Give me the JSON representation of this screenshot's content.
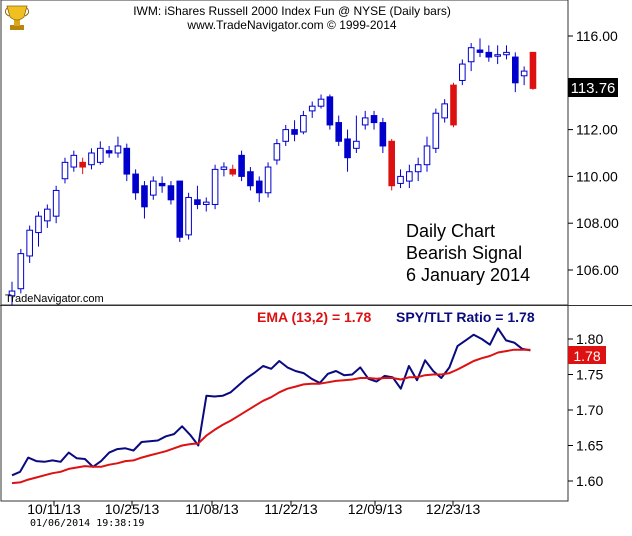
{
  "header": {
    "title": "IWM:  iShares Russell 2000 Index Fun @ NYSE  (Daily bars)",
    "subtitle": "www.TradeNavigator.com © 1999-2014"
  },
  "watermark": "TradeNavigator.com",
  "annotation": [
    "Daily Chart",
    "Bearish Signal",
    "6 January 2014"
  ],
  "footer": {
    "timestamp": "01/06/2014  19:38:19"
  },
  "colors": {
    "up_candle": "#0000cc",
    "down_candle": "#dd1111",
    "ratio_line": "#0a0a80",
    "ema_line": "#dd1111",
    "price_badge": "#000000",
    "ema_badge": "#dd1111"
  },
  "icons": {
    "logo": "trophy-logo-icon"
  },
  "chart_data": [
    {
      "type": "candlestick",
      "ylim": [
        104.5,
        116.5
      ],
      "yticks": [
        "116.00",
        "114.00",
        "112.00",
        "110.00",
        "108.00",
        "106.00"
      ],
      "last_price_label": "113.76",
      "xticks": [
        "10/11/13",
        "10/25/13",
        "11/08/13",
        "11/22/13",
        "12/09/13",
        "12/23/13"
      ],
      "candles": [
        {
          "o": 104.9,
          "h": 105.5,
          "l": 104.5,
          "c": 105.1,
          "dir": "up"
        },
        {
          "o": 105.2,
          "h": 106.9,
          "l": 105.0,
          "c": 106.7,
          "dir": "up"
        },
        {
          "o": 106.6,
          "h": 107.9,
          "l": 106.3,
          "c": 107.7,
          "dir": "up"
        },
        {
          "o": 107.6,
          "h": 108.5,
          "l": 107.0,
          "c": 108.3,
          "dir": "up"
        },
        {
          "o": 108.1,
          "h": 108.8,
          "l": 107.8,
          "c": 108.6,
          "dir": "up"
        },
        {
          "o": 108.3,
          "h": 109.6,
          "l": 108.0,
          "c": 109.4,
          "dir": "up"
        },
        {
          "o": 109.9,
          "h": 110.8,
          "l": 109.7,
          "c": 110.6,
          "dir": "up"
        },
        {
          "o": 110.4,
          "h": 111.1,
          "l": 110.2,
          "c": 110.9,
          "dir": "up"
        },
        {
          "o": 110.6,
          "h": 110.8,
          "l": 110.1,
          "c": 110.4,
          "dir": "down"
        },
        {
          "o": 110.5,
          "h": 111.2,
          "l": 110.3,
          "c": 111.0,
          "dir": "up"
        },
        {
          "o": 110.6,
          "h": 111.5,
          "l": 110.5,
          "c": 111.2,
          "dir": "up"
        },
        {
          "o": 111.1,
          "h": 111.3,
          "l": 110.8,
          "c": 111.0,
          "dir": "up"
        },
        {
          "o": 111.0,
          "h": 111.7,
          "l": 110.8,
          "c": 111.3,
          "dir": "up"
        },
        {
          "o": 111.2,
          "h": 111.4,
          "l": 109.8,
          "c": 110.1,
          "dir": "up"
        },
        {
          "o": 110.1,
          "h": 110.3,
          "l": 109.0,
          "c": 109.3,
          "dir": "up"
        },
        {
          "o": 109.6,
          "h": 109.8,
          "l": 108.2,
          "c": 108.7,
          "dir": "up"
        },
        {
          "o": 109.2,
          "h": 110.0,
          "l": 109.0,
          "c": 109.8,
          "dir": "up"
        },
        {
          "o": 109.7,
          "h": 110.0,
          "l": 109.3,
          "c": 109.6,
          "dir": "up"
        },
        {
          "o": 109.6,
          "h": 109.8,
          "l": 108.8,
          "c": 109.0,
          "dir": "up"
        },
        {
          "o": 109.8,
          "h": 109.8,
          "l": 107.2,
          "c": 107.4,
          "dir": "up"
        },
        {
          "o": 107.5,
          "h": 109.3,
          "l": 107.3,
          "c": 109.1,
          "dir": "up"
        },
        {
          "o": 109.0,
          "h": 109.6,
          "l": 108.6,
          "c": 108.8,
          "dir": "up"
        },
        {
          "o": 108.8,
          "h": 109.1,
          "l": 108.5,
          "c": 108.9,
          "dir": "up"
        },
        {
          "o": 108.8,
          "h": 110.5,
          "l": 108.6,
          "c": 110.3,
          "dir": "up"
        },
        {
          "o": 110.3,
          "h": 110.6,
          "l": 110.0,
          "c": 110.4,
          "dir": "up"
        },
        {
          "o": 110.3,
          "h": 110.5,
          "l": 110.0,
          "c": 110.1,
          "dir": "down"
        },
        {
          "o": 110.9,
          "h": 111.1,
          "l": 109.8,
          "c": 110.0,
          "dir": "up"
        },
        {
          "o": 110.2,
          "h": 110.4,
          "l": 109.4,
          "c": 109.6,
          "dir": "up"
        },
        {
          "o": 109.8,
          "h": 110.0,
          "l": 108.9,
          "c": 109.3,
          "dir": "up"
        },
        {
          "o": 109.3,
          "h": 110.6,
          "l": 109.1,
          "c": 110.4,
          "dir": "up"
        },
        {
          "o": 110.7,
          "h": 111.6,
          "l": 110.5,
          "c": 111.4,
          "dir": "up"
        },
        {
          "o": 111.5,
          "h": 112.2,
          "l": 111.3,
          "c": 112.0,
          "dir": "up"
        },
        {
          "o": 112.0,
          "h": 112.4,
          "l": 111.5,
          "c": 111.8,
          "dir": "up"
        },
        {
          "o": 111.9,
          "h": 112.8,
          "l": 111.8,
          "c": 112.6,
          "dir": "up"
        },
        {
          "o": 112.8,
          "h": 113.2,
          "l": 112.5,
          "c": 113.0,
          "dir": "up"
        },
        {
          "o": 113.0,
          "h": 113.5,
          "l": 112.9,
          "c": 113.3,
          "dir": "up"
        },
        {
          "o": 113.4,
          "h": 113.5,
          "l": 112.0,
          "c": 112.2,
          "dir": "up"
        },
        {
          "o": 112.3,
          "h": 112.6,
          "l": 111.3,
          "c": 111.5,
          "dir": "up"
        },
        {
          "o": 111.6,
          "h": 112.0,
          "l": 110.2,
          "c": 110.8,
          "dir": "up"
        },
        {
          "o": 111.2,
          "h": 112.6,
          "l": 111.0,
          "c": 111.5,
          "dir": "up"
        },
        {
          "o": 112.2,
          "h": 112.8,
          "l": 112.0,
          "c": 112.5,
          "dir": "up"
        },
        {
          "o": 112.6,
          "h": 112.8,
          "l": 112.0,
          "c": 112.3,
          "dir": "up"
        },
        {
          "o": 112.3,
          "h": 112.5,
          "l": 111.0,
          "c": 111.3,
          "dir": "up"
        },
        {
          "o": 111.5,
          "h": 111.6,
          "l": 109.4,
          "c": 109.6,
          "dir": "down"
        },
        {
          "o": 109.7,
          "h": 110.3,
          "l": 109.5,
          "c": 110.0,
          "dir": "up"
        },
        {
          "o": 109.8,
          "h": 110.5,
          "l": 109.5,
          "c": 110.2,
          "dir": "up"
        },
        {
          "o": 110.2,
          "h": 110.8,
          "l": 109.8,
          "c": 110.5,
          "dir": "up"
        },
        {
          "o": 110.5,
          "h": 111.7,
          "l": 110.2,
          "c": 111.3,
          "dir": "up"
        },
        {
          "o": 111.2,
          "h": 112.9,
          "l": 111.0,
          "c": 112.7,
          "dir": "up"
        },
        {
          "o": 112.5,
          "h": 113.3,
          "l": 112.3,
          "c": 113.1,
          "dir": "up"
        },
        {
          "o": 112.2,
          "h": 114.0,
          "l": 112.1,
          "c": 113.9,
          "dir": "down"
        },
        {
          "o": 114.1,
          "h": 115.0,
          "l": 113.9,
          "c": 114.8,
          "dir": "up"
        },
        {
          "o": 114.9,
          "h": 115.7,
          "l": 114.5,
          "c": 115.5,
          "dir": "up"
        },
        {
          "o": 115.4,
          "h": 115.9,
          "l": 115.1,
          "c": 115.3,
          "dir": "up"
        },
        {
          "o": 115.3,
          "h": 115.6,
          "l": 114.9,
          "c": 115.1,
          "dir": "up"
        },
        {
          "o": 115.2,
          "h": 115.6,
          "l": 114.8,
          "c": 115.2,
          "dir": "up"
        },
        {
          "o": 115.2,
          "h": 115.6,
          "l": 115.0,
          "c": 115.3,
          "dir": "up"
        },
        {
          "o": 115.1,
          "h": 115.3,
          "l": 113.6,
          "c": 114.0,
          "dir": "up"
        },
        {
          "o": 114.3,
          "h": 114.7,
          "l": 113.9,
          "c": 114.5,
          "dir": "up"
        },
        {
          "o": 115.3,
          "h": 115.3,
          "l": 113.7,
          "c": 113.76,
          "dir": "down"
        }
      ]
    },
    {
      "type": "line",
      "ylim": [
        1.585,
        1.825
      ],
      "yticks": [
        "1.80",
        "1.75",
        "1.70",
        "1.65",
        "1.60"
      ],
      "legend": [
        {
          "label": "EMA (13,2) = 1.78",
          "series": "EMA (13,2)",
          "color": "#dd1111"
        },
        {
          "label": "SPY/TLT Ratio = 1.78",
          "series": "SPY/TLT Ratio",
          "color": "#0a0a80"
        }
      ],
      "last_value_label": "1.78",
      "series": [
        {
          "name": "SPY/TLT Ratio",
          "values": [
            1.608,
            1.613,
            1.633,
            1.628,
            1.627,
            1.629,
            1.627,
            1.64,
            1.632,
            1.631,
            1.62,
            1.628,
            1.64,
            1.645,
            1.646,
            1.643,
            1.655,
            1.656,
            1.657,
            1.663,
            1.666,
            1.677,
            1.665,
            1.65,
            1.72,
            1.719,
            1.72,
            1.725,
            1.735,
            1.745,
            1.753,
            1.762,
            1.758,
            1.769,
            1.76,
            1.755,
            1.752,
            1.744,
            1.738,
            1.751,
            1.755,
            1.749,
            1.75,
            1.76,
            1.744,
            1.74,
            1.748,
            1.746,
            1.73,
            1.762,
            1.742,
            1.77,
            1.755,
            1.745,
            1.76,
            1.79,
            1.798,
            1.806,
            1.8,
            1.792,
            1.815,
            1.798,
            1.795,
            1.786,
            1.784
          ]
        },
        {
          "name": "EMA (13,2)",
          "values": [
            1.597,
            1.598,
            1.602,
            1.605,
            1.608,
            1.611,
            1.613,
            1.617,
            1.619,
            1.621,
            1.62,
            1.62,
            1.623,
            1.625,
            1.628,
            1.629,
            1.633,
            1.636,
            1.639,
            1.642,
            1.646,
            1.65,
            1.652,
            1.653,
            1.664,
            1.672,
            1.679,
            1.685,
            1.692,
            1.699,
            1.706,
            1.713,
            1.718,
            1.725,
            1.73,
            1.733,
            1.736,
            1.737,
            1.737,
            1.739,
            1.741,
            1.742,
            1.743,
            1.745,
            1.745,
            1.744,
            1.745,
            1.745,
            1.743,
            1.746,
            1.746,
            1.749,
            1.75,
            1.75,
            1.752,
            1.757,
            1.763,
            1.769,
            1.773,
            1.776,
            1.781,
            1.783,
            1.785,
            1.785,
            1.785
          ]
        }
      ]
    }
  ]
}
